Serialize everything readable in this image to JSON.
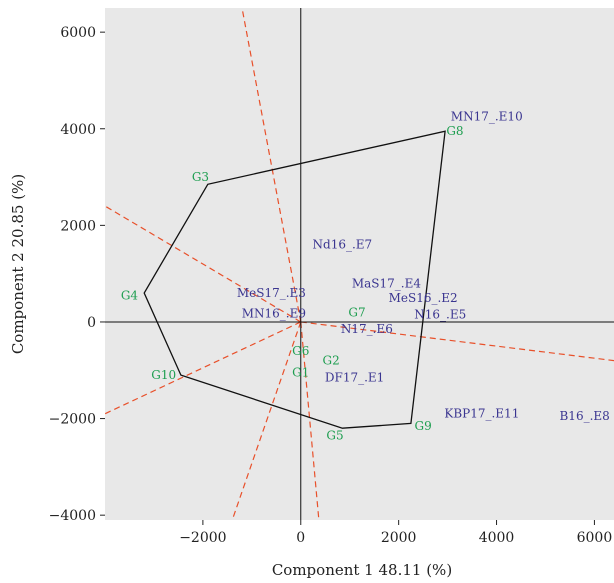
{
  "chart_data": {
    "type": "scatter",
    "subtype": "GGE biplot (which-won-where)",
    "xlabel": "Component 1 48.11 (%)",
    "ylabel": "Component 2 20.85 (%)",
    "xlim": [
      -4000,
      6400
    ],
    "ylim": [
      -4100,
      6500
    ],
    "xticks": [
      -2000,
      0,
      2000,
      4000,
      6000
    ],
    "yticks": [
      -4000,
      -2000,
      0,
      2000,
      4000,
      6000
    ],
    "xtick_labels": [
      "−2000",
      "0",
      "2000",
      "4000",
      "6000"
    ],
    "ytick_labels": [
      "−4000",
      "−2000",
      "0",
      "2000",
      "4000",
      "6000"
    ],
    "grid": false,
    "series": [
      {
        "role": "genotypes",
        "color": "#1e9e50",
        "points": [
          {
            "label": "G1",
            "x": 0,
            "y": -1050
          },
          {
            "label": "G2",
            "x": 620,
            "y": -800
          },
          {
            "label": "G3",
            "x": -2050,
            "y": 3000
          },
          {
            "label": "G4",
            "x": -3500,
            "y": 550
          },
          {
            "label": "G5",
            "x": 700,
            "y": -2350
          },
          {
            "label": "G6",
            "x": 0,
            "y": -600
          },
          {
            "label": "G7",
            "x": 1150,
            "y": 200
          },
          {
            "label": "G8",
            "x": 3150,
            "y": 3950
          },
          {
            "label": "G9",
            "x": 2500,
            "y": -2150
          },
          {
            "label": "G10",
            "x": -2800,
            "y": -1100
          }
        ]
      },
      {
        "role": "environments",
        "color": "#3a3590",
        "points": [
          {
            "label": "MN17_.E10",
            "x": 3800,
            "y": 4250
          },
          {
            "label": "Nd16_.E7",
            "x": 850,
            "y": 1600
          },
          {
            "label": "MaS17_.E4",
            "x": 1750,
            "y": 800
          },
          {
            "label": "MeS17_.E3",
            "x": -600,
            "y": 600
          },
          {
            "label": "MeS16_.E2",
            "x": 2500,
            "y": 500
          },
          {
            "label": "MN16_.E9",
            "x": -550,
            "y": 180
          },
          {
            "label": "N16_.E5",
            "x": 2850,
            "y": 150
          },
          {
            "label": "N17_.E6",
            "x": 1350,
            "y": -150
          },
          {
            "label": "DF17_.E1",
            "x": 1100,
            "y": -1150
          },
          {
            "label": "KBP17_.E11",
            "x": 3700,
            "y": -1900
          },
          {
            "label": "B16_.E8",
            "x": 5800,
            "y": -1950
          }
        ]
      }
    ],
    "polygon": {
      "color": "#111111",
      "vertices": [
        "G8",
        "G9",
        "G5",
        "G10",
        "G4",
        "G3"
      ],
      "points": [
        [
          2950,
          3950
        ],
        [
          2250,
          -2100
        ],
        [
          850,
          -2200
        ],
        [
          -2450,
          -1100
        ],
        [
          -3200,
          600
        ],
        [
          -1900,
          2850
        ]
      ]
    },
    "sector_lines": {
      "color": "#e8502a",
      "style": "dashed",
      "directions": [
        [
          -1200,
          6500
        ],
        [
          -4000,
          2400
        ],
        [
          -4000,
          -1900
        ],
        [
          -1400,
          -4100
        ],
        [
          370,
          -4100
        ],
        [
          6400,
          -800
        ]
      ]
    }
  }
}
